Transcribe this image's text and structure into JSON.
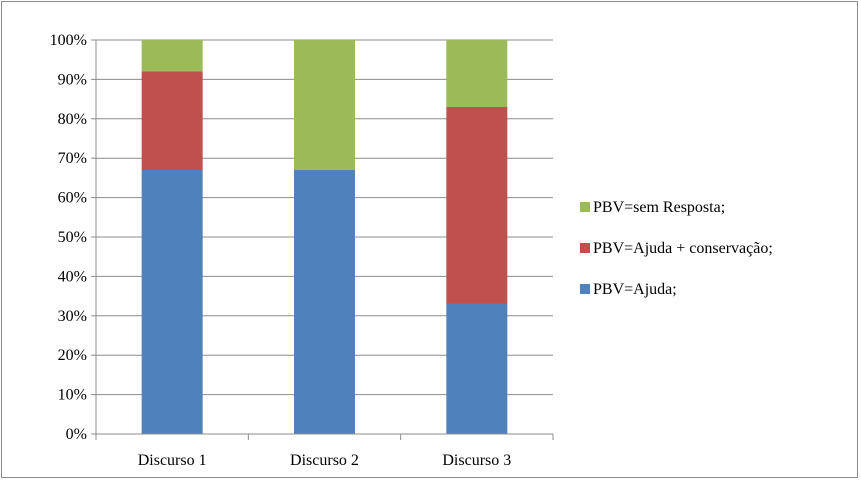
{
  "chart_data": {
    "type": "bar",
    "stacked": true,
    "percent": true,
    "categories": [
      "Discurso 1",
      "Discurso 2",
      "Discurso 3"
    ],
    "series": [
      {
        "name": "PBV=Ajuda;",
        "color": "#4F81BD",
        "values": [
          67,
          67,
          33
        ]
      },
      {
        "name": "PBV=Ajuda + conservação;",
        "color": "#C0504D",
        "values": [
          25,
          0,
          50
        ]
      },
      {
        "name": "PBV=sem Resposta;",
        "color": "#9BBB59",
        "values": [
          8,
          33,
          17
        ]
      }
    ],
    "ylim": [
      0,
      100
    ],
    "yticks": [
      "0%",
      "10%",
      "20%",
      "30%",
      "40%",
      "50%",
      "60%",
      "70%",
      "80%",
      "90%",
      "100%"
    ],
    "grid": true,
    "legend": "right",
    "legend_order": [
      "PBV=sem Resposta;",
      "PBV=Ajuda + conservação;",
      "PBV=Ajuda;"
    ]
  }
}
